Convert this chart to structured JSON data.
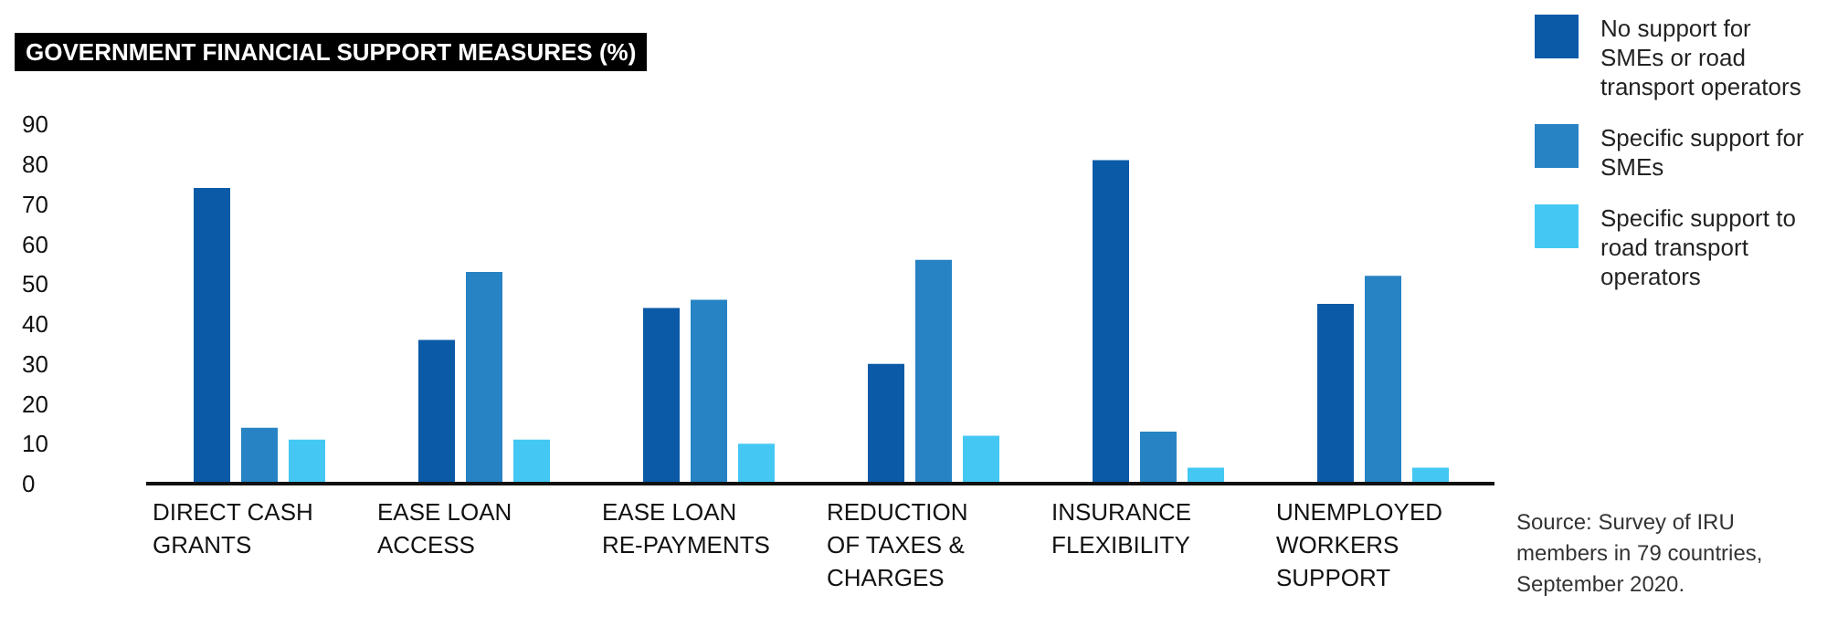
{
  "chart_data": {
    "type": "bar",
    "title": "GOVERNMENT FINANCIAL SUPPORT MEASURES (%)",
    "categories": [
      "DIRECT CASH GRANTS",
      "EASE LOAN ACCESS",
      "EASE LOAN RE-PAYMENTS",
      "REDUCTION OF TAXES & CHARGES",
      "INSURANCE FLEXIBILITY",
      "UNEMPLOYED WORKERS SUPPORT"
    ],
    "series": [
      {
        "name": "No support for SMEs or road transport operators",
        "color": "#0b5aa8",
        "values": [
          74,
          36,
          44,
          30,
          81,
          45
        ]
      },
      {
        "name": "Specific support for SMEs",
        "color": "#2783c4",
        "values": [
          14,
          53,
          46,
          56,
          13,
          52
        ]
      },
      {
        "name": "Specific support to road transport operators",
        "color": "#44c8f3",
        "values": [
          11,
          11,
          10,
          12,
          4,
          4
        ]
      }
    ],
    "ylim": [
      0,
      90
    ],
    "yticks": [
      0,
      10,
      20,
      30,
      40,
      50,
      60,
      70,
      80,
      90
    ],
    "grid": false,
    "legend": "top right",
    "annotations": [
      "Source: Survey of IRU members in 79 countries, September 2020."
    ]
  }
}
